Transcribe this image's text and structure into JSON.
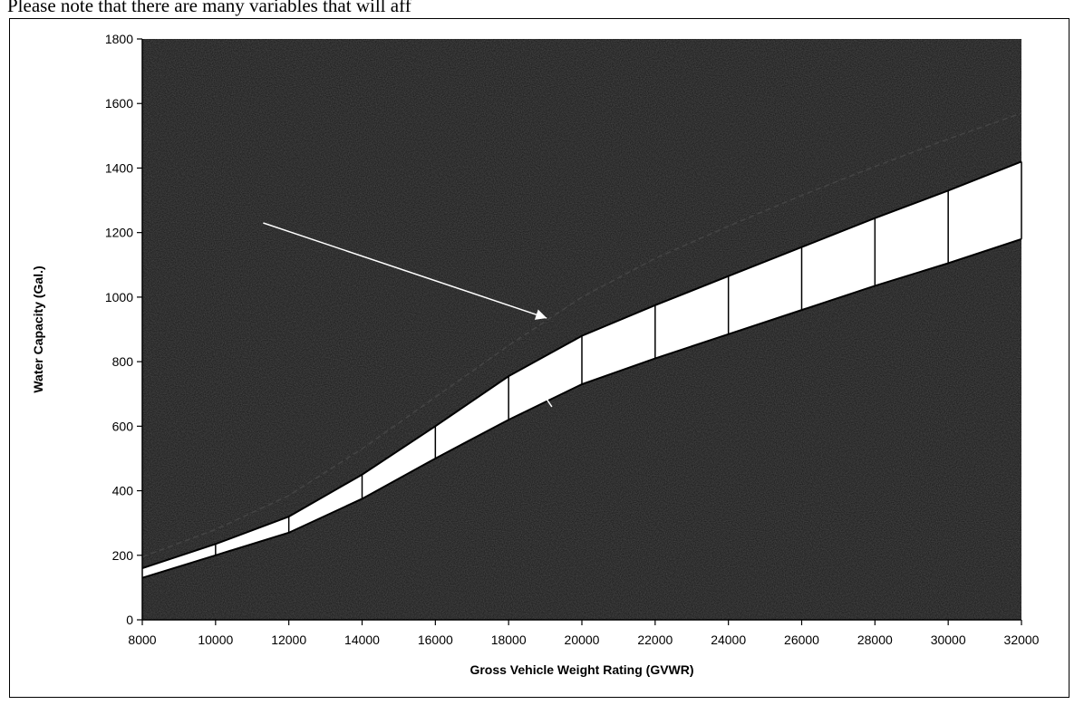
{
  "page": {
    "top_text": "Please note that there are many variables that will aff"
  },
  "chart_data": {
    "type": "area",
    "xlabel": "Gross Vehicle Weight Rating (GVWR)",
    "ylabel": "Water Capacity (Gal.)",
    "xlim": [
      8000,
      32000
    ],
    "ylim": [
      0,
      1800
    ],
    "x_ticks": [
      8000,
      10000,
      12000,
      14000,
      16000,
      18000,
      20000,
      22000,
      24000,
      26000,
      28000,
      30000,
      32000
    ],
    "y_ticks": [
      0,
      200,
      400,
      600,
      800,
      1000,
      1200,
      1400,
      1600,
      1800
    ],
    "grid": false,
    "x": [
      8000,
      10000,
      12000,
      14000,
      16000,
      18000,
      20000,
      22000,
      24000,
      26000,
      28000,
      30000,
      32000
    ],
    "series": [
      {
        "values": [
          130,
          200,
          270,
          375,
          500,
          620,
          730,
          810,
          885,
          960,
          1035,
          1105,
          1180
        ]
      },
      {
        "values": [
          160,
          235,
          320,
          450,
          600,
          755,
          880,
          975,
          1065,
          1155,
          1245,
          1330,
          1420
        ]
      },
      {
        "values": [
          195,
          280,
          385,
          530,
          690,
          850,
          1000,
          1120,
          1220,
          1315,
          1405,
          1490,
          1570
        ]
      }
    ],
    "annotations": [
      {
        "kind": "arrow",
        "from": [
          11300,
          1230
        ],
        "to": [
          19040,
          935
        ]
      },
      {
        "kind": "arrow",
        "from": [
          19180,
          660
        ],
        "to": [
          18680,
          745
        ]
      }
    ],
    "colors": {
      "background": "#141414",
      "band": "#ffffff",
      "lines": "#000000",
      "annotation_arrow": "#ffffff"
    }
  }
}
